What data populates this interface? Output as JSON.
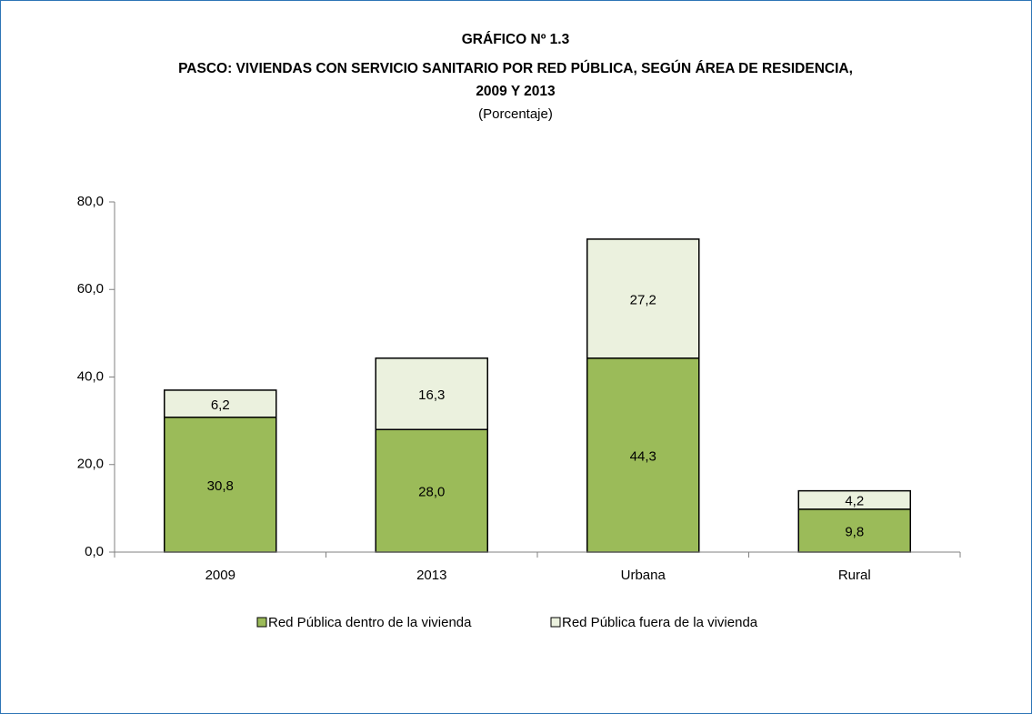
{
  "chart_data": {
    "type": "stacked_bar",
    "title": "GRÁFICO Nº 1.3",
    "subtitle": [
      "PASCO: VIVIENDAS CON SERVICIO SANITARIO POR RED PÚBLICA, SEGÚN ÁREA DE RESIDENCIA,",
      "2009 Y 2013"
    ],
    "unit_label": "(Porcentaje)",
    "categories": [
      "2009",
      "2013",
      "Urbana",
      "Rural"
    ],
    "series": [
      {
        "name": "Red Pública dentro de la vivienda",
        "color": "#9bbb59",
        "values": [
          30.8,
          28.0,
          44.3,
          9.8
        ],
        "value_labels": [
          "30,8",
          "28,0",
          "44,3",
          "9,8"
        ]
      },
      {
        "name": "Red Pública fuera de la vivienda",
        "color": "#ebf1de",
        "values": [
          6.2,
          16.3,
          27.2,
          4.2
        ],
        "value_labels": [
          "6,2",
          "16,3",
          "27,2",
          "4,2"
        ]
      }
    ],
    "ylim": [
      0,
      80
    ],
    "yticks": [
      {
        "value": 0,
        "label": "0,0"
      },
      {
        "value": 20,
        "label": "20,0"
      },
      {
        "value": 40,
        "label": "40,0"
      },
      {
        "value": 60,
        "label": "60,0"
      },
      {
        "value": 80,
        "label": "80,0"
      }
    ],
    "legend": "bottom"
  }
}
